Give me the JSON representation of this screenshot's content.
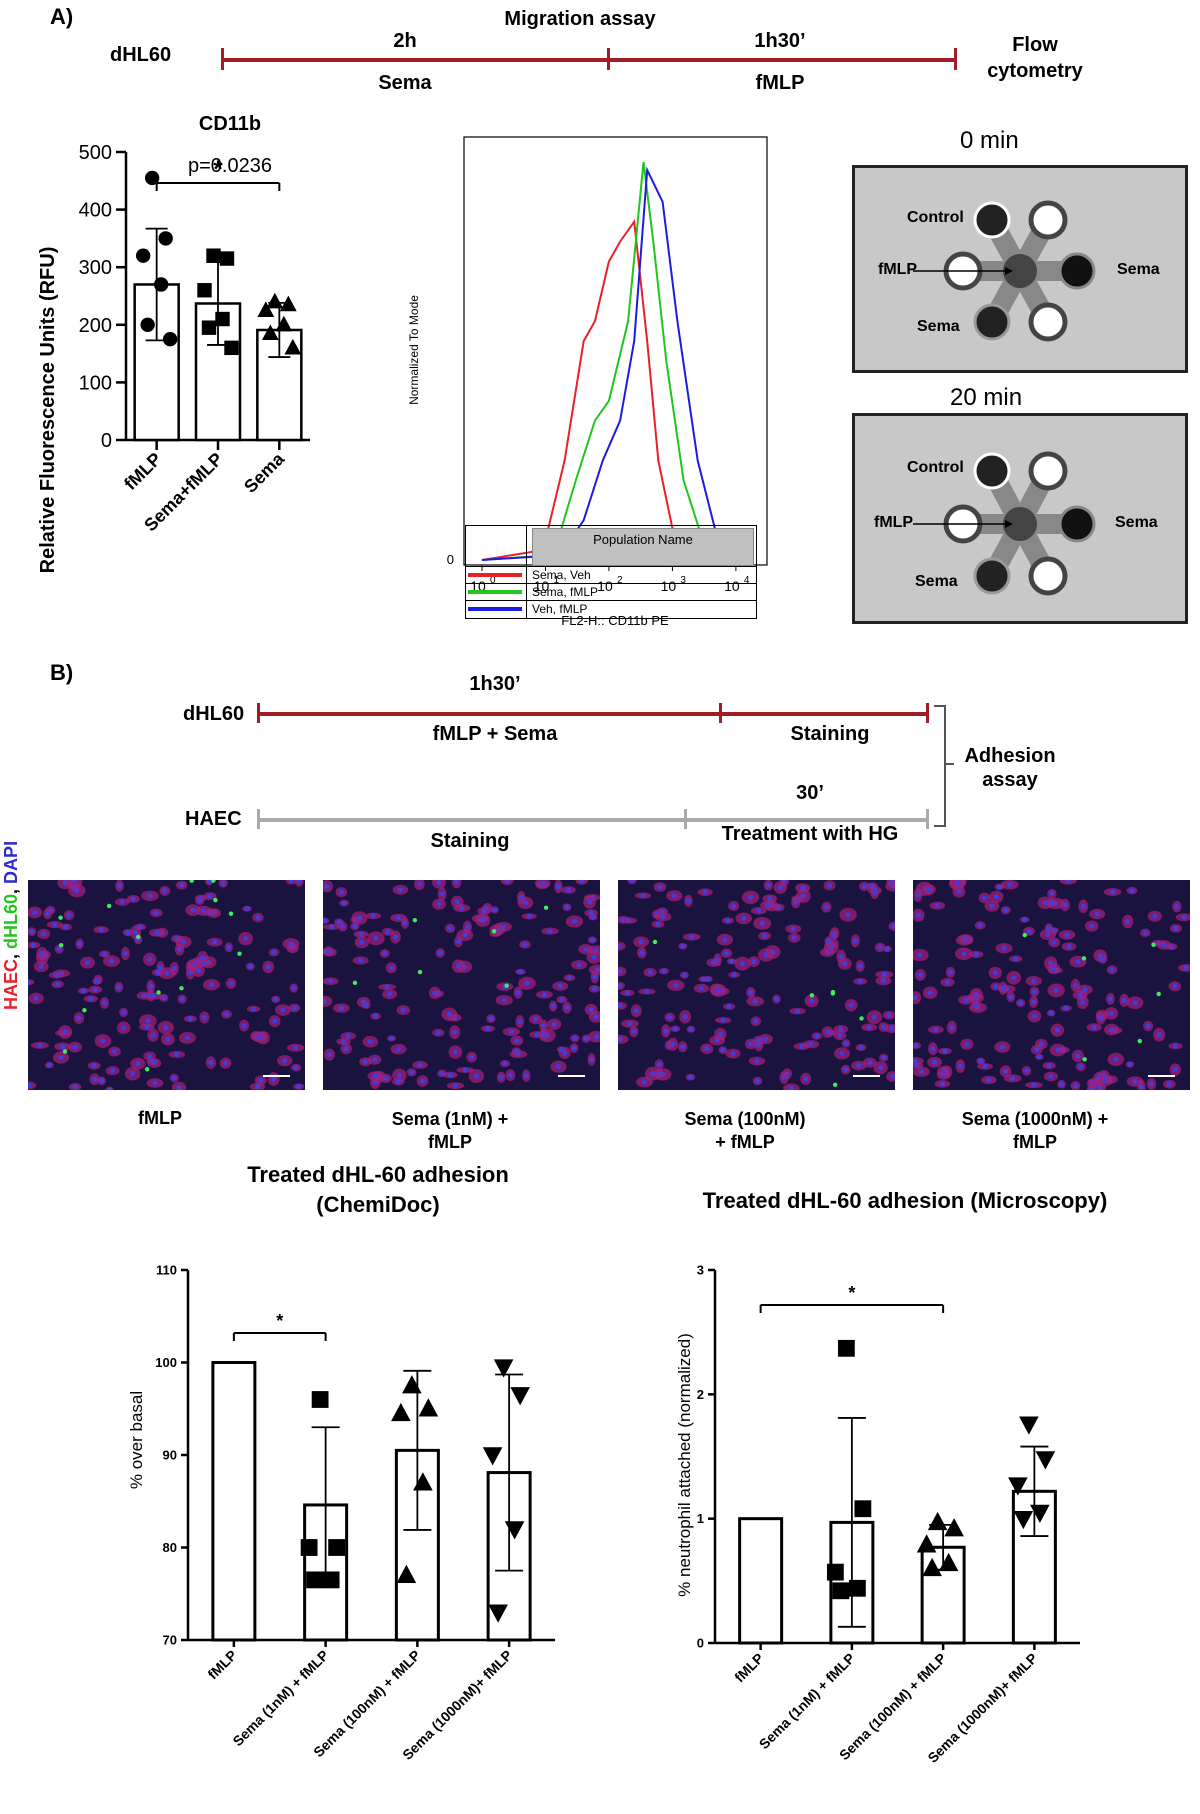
{
  "panelA": {
    "label": "A)",
    "timeline": {
      "title": "Migration assay",
      "cell": "dHL60",
      "step1_time": "2h",
      "step1_treat": "Sema",
      "step2_time": "1h30’",
      "step2_treat": "fMLP",
      "end": "Flow cytometry"
    },
    "chamber": {
      "t0": "0 min",
      "t20": "20 min",
      "labels": {
        "control": "Control",
        "fmlp": "fMLP",
        "sema_right": "Sema",
        "sema_bottom": "Sema"
      }
    },
    "flow_legend_header": "Population Name"
  },
  "panelB": {
    "label": "B)",
    "timeline": {
      "cell1": "dHL60",
      "cell1_time": "1h30’",
      "cell1_treat": "fMLP + Sema",
      "cell1_stain": "Staining",
      "cell2": "HAEC",
      "cell2_stain": "Staining",
      "cell2_time": "30’",
      "cell2_treat": "Treatment with HG",
      "assay": "Adhesion assay"
    },
    "micro_ylabel": {
      "haec": "HAEC",
      "sep1": ", ",
      "dhl60": "dHL60",
      "sep2": ", ",
      "dapi": "DAPI"
    },
    "micro_captions": [
      "fMLP",
      "Sema (1nM) + fMLP",
      "Sema (100nM) + fMLP",
      "Sema (1000nM) + fMLP"
    ],
    "title_chemidoc": "Treated dHL-60 adhesion (ChemiDoc)",
    "title_microscopy": "Treated dHL-60 adhesion (Microscopy)"
  },
  "colors": {
    "timeline_red": "#a01d24",
    "timeline_grey": "#a9a9a9",
    "veh_red": "#e8202a",
    "fmlp_green": "#22c41e",
    "veh_fmlp_blue": "#1c1ce0"
  },
  "chart_data": [
    {
      "type": "bar",
      "title": "CD11b",
      "ylabel": "Relative Fluorescence Units (RFU)",
      "categories": [
        "fMLP",
        "Sema+fMLP",
        "Sema"
      ],
      "values": [
        270,
        237,
        191
      ],
      "errors": [
        97,
        72,
        47
      ],
      "ylim": [
        0,
        500
      ],
      "yticks": [
        0,
        100,
        200,
        300,
        400,
        500
      ],
      "points": [
        [
          455,
          350,
          320,
          270,
          200,
          175
        ],
        [
          320,
          315,
          260,
          210,
          195,
          160
        ],
        [
          240,
          235,
          225,
          200,
          185,
          160
        ]
      ],
      "markers": [
        "circle",
        "square",
        "triangle"
      ],
      "annotation": {
        "p": "p=0.0236",
        "star": "*",
        "from": 0,
        "to": 2
      }
    },
    {
      "type": "line",
      "xlabel": "FL2-H:: CD11b PE",
      "ylabel": "Normalized To Mode",
      "xscale": "log",
      "xlim": [
        1,
        20000
      ],
      "xticks": [
        "0",
        "1",
        "2",
        "3",
        "4"
      ],
      "yticks": [
        "0"
      ],
      "series": [
        {
          "name": "Sema, Veh",
          "color": "#e8202a",
          "x": [
            1,
            6,
            10,
            20,
            40,
            60,
            100,
            150,
            250,
            400,
            600,
            1000,
            2000,
            5000
          ],
          "y": [
            0,
            2,
            5,
            25,
            55,
            60,
            75,
            80,
            85,
            55,
            25,
            8,
            2,
            0
          ]
        },
        {
          "name": "Sema, fMLP",
          "color": "#22c41e",
          "x": [
            1,
            8,
            15,
            30,
            60,
            100,
            200,
            350,
            500,
            800,
            1500,
            3000,
            8000
          ],
          "y": [
            0,
            1,
            4,
            20,
            35,
            40,
            60,
            100,
            80,
            50,
            20,
            5,
            0
          ]
        },
        {
          "name": "Veh, fMLP",
          "color": "#1c1ce0",
          "x": [
            1,
            10,
            20,
            40,
            80,
            150,
            250,
            400,
            700,
            1200,
            2500,
            5000,
            12000
          ],
          "y": [
            0,
            1,
            3,
            10,
            25,
            35,
            55,
            98,
            90,
            60,
            25,
            6,
            0
          ]
        }
      ]
    },
    {
      "type": "bar",
      "title": "Treated dHL-60 adhesion (ChemiDoc)",
      "ylabel": "% over basal",
      "categories": [
        "fMLP",
        "Sema (1nM) + fMLP",
        "Sema (100nM) + fMLP",
        "Sema (1000nM)+ fMLP"
      ],
      "values": [
        100,
        84.6,
        90.5,
        88.1
      ],
      "errors": [
        0,
        8.4,
        8.6,
        10.6
      ],
      "ylim": [
        70,
        110
      ],
      "yticks": [
        70,
        80,
        90,
        100,
        110
      ],
      "points": [
        [],
        [
          96,
          80,
          80,
          76.5,
          76.5
        ],
        [
          97.5,
          95,
          94.5,
          87,
          77
        ],
        [
          99.5,
          96.5,
          90,
          82,
          73
        ]
      ],
      "markers": [
        "none",
        "square",
        "triangle",
        "triangle-down"
      ],
      "annotation": {
        "star": "*",
        "from": 0,
        "to": 1
      }
    },
    {
      "type": "bar",
      "title": "Treated dHL-60 adhesion (Microscopy)",
      "ylabel": "% neutrophil attached (normalized)",
      "categories": [
        "fMLP",
        "Sema (1nM) + fMLP",
        "Sema (100nM) + fMLP",
        "Sema (1000nM)+ fMLP"
      ],
      "values": [
        1,
        0.97,
        0.77,
        1.22
      ],
      "errors": [
        0,
        0.84,
        0.18,
        0.36
      ],
      "ylim": [
        0,
        3
      ],
      "yticks": [
        0,
        1,
        2,
        3
      ],
      "points": [
        [],
        [
          2.37,
          1.08,
          0.57,
          0.44,
          0.42
        ],
        [
          0.97,
          0.92,
          0.79,
          0.64,
          0.6
        ],
        [
          1.76,
          1.48,
          1.27,
          1.05,
          1.0
        ]
      ],
      "markers": [
        "none",
        "square",
        "triangle",
        "triangle-down"
      ],
      "annotation": {
        "star": "*",
        "from": 0,
        "to": 2
      }
    }
  ]
}
